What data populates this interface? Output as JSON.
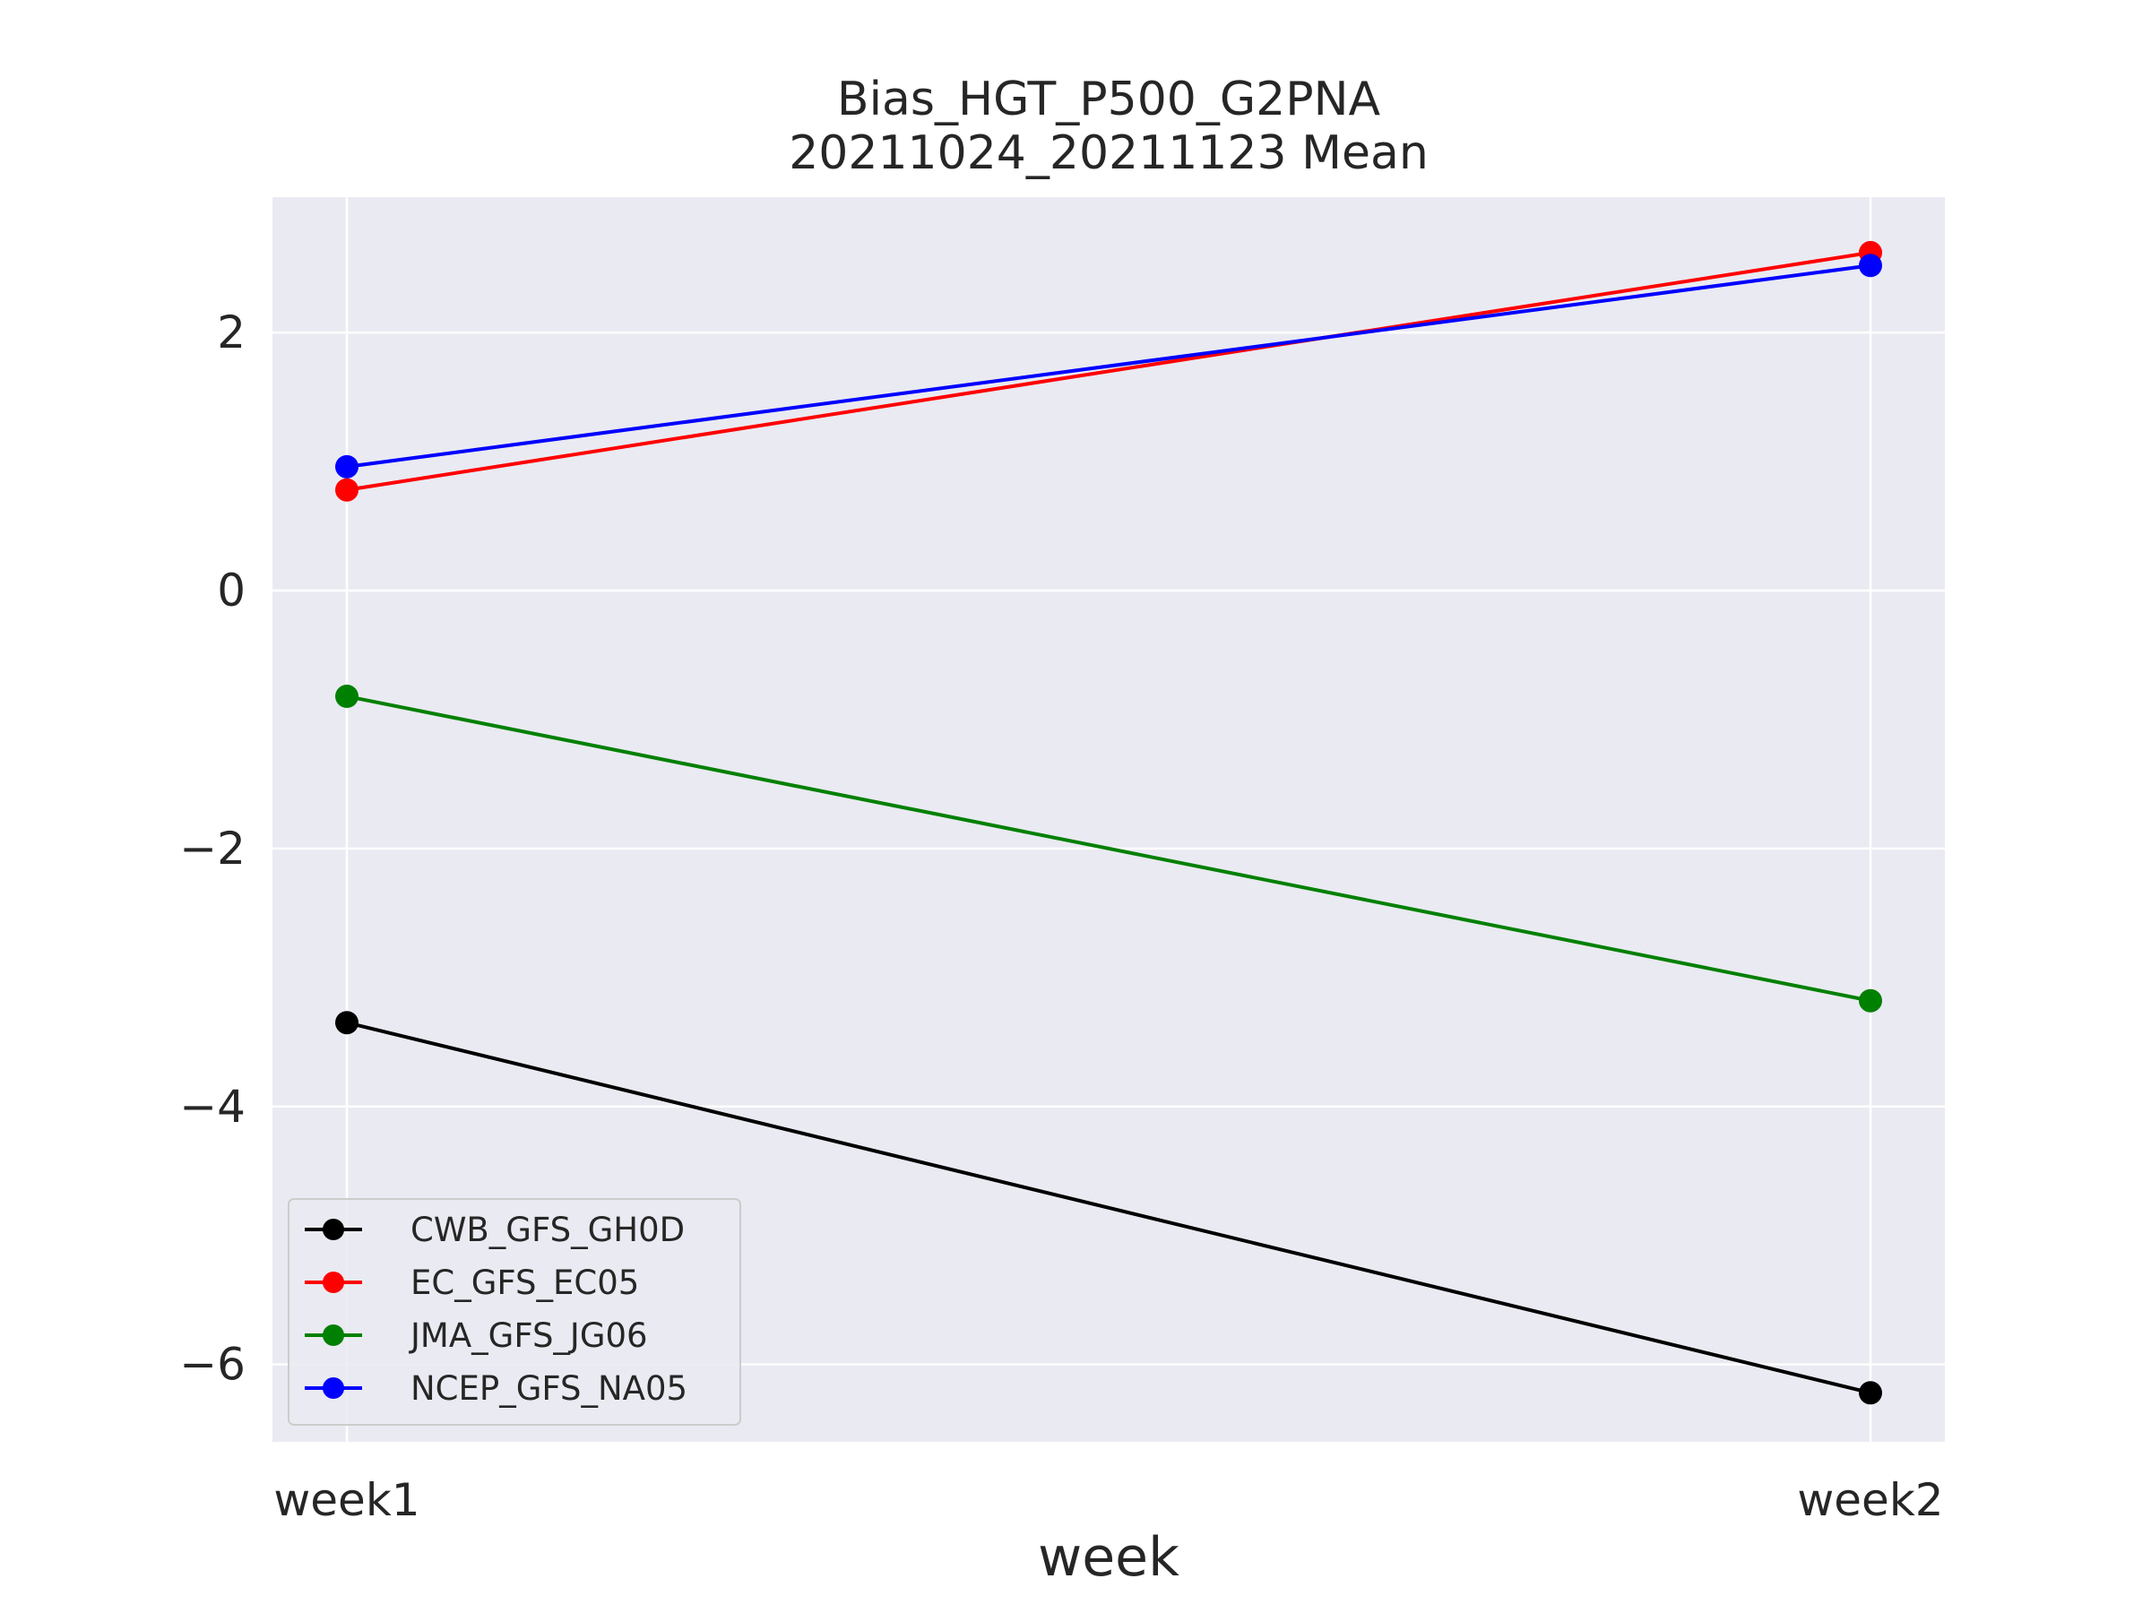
{
  "chart_data": {
    "type": "line",
    "title": "Bias_HGT_P500_G2PNA",
    "subtitle": "20211024_20211123 Mean",
    "xlabel": "week",
    "ylabel": "",
    "categories": [
      "week1",
      "week2"
    ],
    "ylim": [
      -6.6,
      3.05
    ],
    "yticks": [
      2,
      0,
      -2,
      -4,
      -6
    ],
    "ytick_labels": [
      "2",
      "0",
      "−2",
      "−4",
      "−6"
    ],
    "grid": true,
    "legend_position": "lower-left",
    "series": [
      {
        "name": "CWB_GFS_GH0D",
        "color": "#000000",
        "values": [
          -3.35,
          -6.22
        ]
      },
      {
        "name": "EC_GFS_EC05",
        "color": "#ff0000",
        "values": [
          0.78,
          2.62
        ]
      },
      {
        "name": "JMA_GFS_JG06",
        "color": "#008000",
        "values": [
          -0.82,
          -3.18
        ]
      },
      {
        "name": "NCEP_GFS_NA05",
        "color": "#0000ff",
        "values": [
          0.96,
          2.52
        ]
      }
    ]
  }
}
